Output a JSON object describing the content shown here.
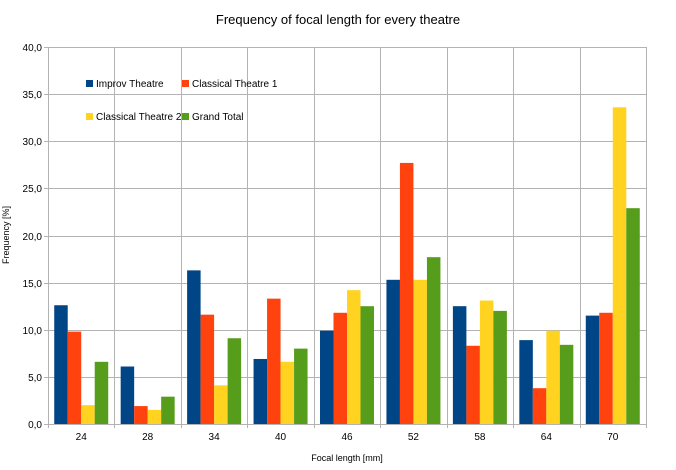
{
  "chart_data": {
    "type": "bar",
    "title": "Frequency of focal length for every theatre",
    "xlabel": "Focal length [mm]",
    "ylabel": "Frequency [%]",
    "categories": [
      "24",
      "28",
      "34",
      "40",
      "46",
      "52",
      "58",
      "64",
      "70"
    ],
    "ylim": [
      0,
      40
    ],
    "yticks": [
      "0,0",
      "5,0",
      "10,0",
      "15,0",
      "20,0",
      "25,0",
      "30,0",
      "35,0",
      "40,0"
    ],
    "grid": true,
    "legend": "top-left, inside plot",
    "series": [
      {
        "name": "Improv Theatre",
        "color": "#004586",
        "values": [
          12.6,
          6.1,
          16.3,
          6.9,
          9.9,
          15.3,
          12.5,
          8.9,
          11.5
        ]
      },
      {
        "name": "Classical Theatre 1",
        "color": "#ff420e",
        "values": [
          9.8,
          1.9,
          11.6,
          13.3,
          11.8,
          27.7,
          8.3,
          3.8,
          11.8
        ]
      },
      {
        "name": "Classical Theatre 2",
        "color": "#ffd320",
        "values": [
          2.0,
          1.5,
          4.1,
          6.6,
          14.2,
          15.3,
          13.1,
          9.9,
          33.6
        ]
      },
      {
        "name": "Grand Total",
        "color": "#579d1c",
        "values": [
          6.6,
          2.9,
          9.1,
          8.0,
          12.5,
          17.7,
          12.0,
          8.4,
          22.9
        ]
      }
    ]
  }
}
